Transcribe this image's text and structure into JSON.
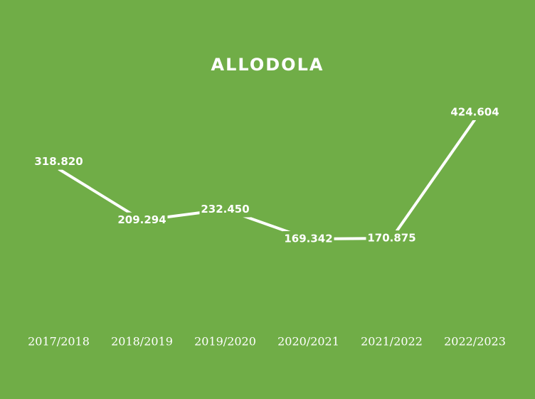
{
  "chart_data": {
    "type": "line",
    "title": "ALLODOLA",
    "categories": [
      "2017/2018",
      "2018/2019",
      "2019/2020",
      "2020/2021",
      "2021/2022",
      "2022/2023"
    ],
    "values": [
      318820,
      209294,
      232450,
      169342,
      170875,
      424604
    ],
    "value_labels": [
      "318.820",
      "209.294",
      "232.450",
      "169.342",
      "170.875",
      "424.604"
    ],
    "color": "#ffffff",
    "background": "#70ad47"
  }
}
